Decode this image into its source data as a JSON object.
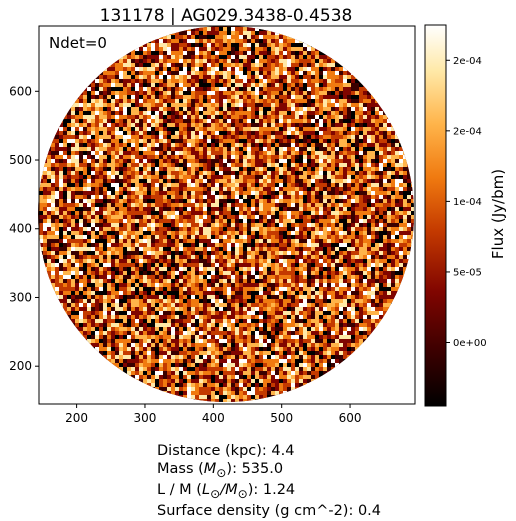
{
  "chart_data": {
    "type": "heatmap",
    "title": "131178 | AG029.3438-0.4538",
    "annotation": "Ndet=0",
    "xlim": [
      145,
      695
    ],
    "ylim": [
      145,
      695
    ],
    "x_ticks": [
      200,
      300,
      400,
      500,
      600
    ],
    "y_ticks": [
      200,
      300,
      400,
      500,
      600
    ],
    "x_tick_labels": [
      "200",
      "300",
      "400",
      "500",
      "600"
    ],
    "y_tick_labels": [
      "200",
      "300",
      "400",
      "500",
      "600"
    ],
    "map_center": [
      420,
      420
    ],
    "map_radius": 275,
    "colorbar": {
      "label": "Flux (Jy/bm)",
      "min": -4.5e-05,
      "max": 0.000225,
      "ticks": [
        0.0,
        5e-05,
        0.0001,
        0.00015,
        0.0002
      ],
      "tick_labels": [
        "0e+00",
        "5e-05",
        "1e-04",
        "2e-04",
        "2e-04"
      ],
      "colormap": "afmhot",
      "colors": [
        "#000000",
        "#3a0000",
        "#800500",
        "#c43a00",
        "#f07a10",
        "#ffb44a",
        "#ffe9a8",
        "#ffffff"
      ]
    }
  },
  "info": {
    "distance": "Distance (kpc): 4.4",
    "mass_prefix": "Mass (",
    "mass_symbol": "M",
    "mass_sub": "⊙",
    "mass_suffix": "): 535.0",
    "lm_prefix": "L / M (",
    "lm_symbol_l": "L",
    "lm_sub_l": "⊙",
    "lm_slash": "/",
    "lm_symbol_m": "M",
    "lm_sub_m": "⊙",
    "lm_suffix": "): 1.24",
    "surface_density": "Surface density (g cm^-2): 0.4"
  }
}
